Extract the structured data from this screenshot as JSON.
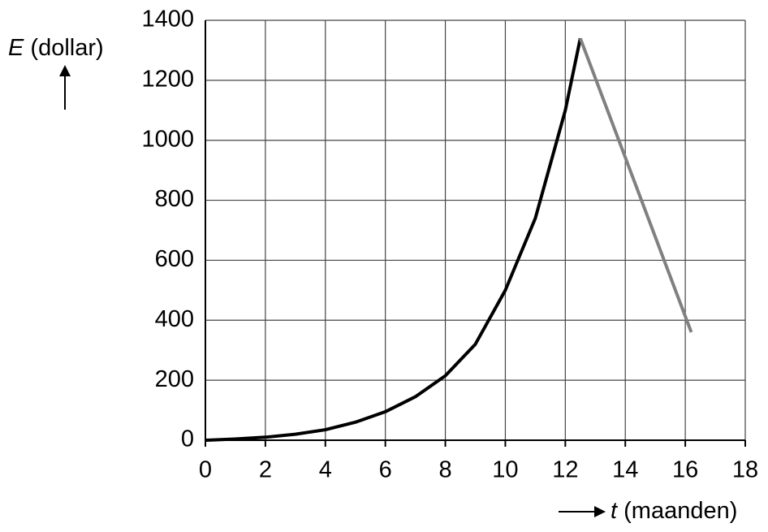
{
  "chart_data": {
    "type": "line",
    "y_label_symbol": "E",
    "y_label_unit": "(dollar)",
    "x_label_symbol": "t",
    "x_label_unit": "(maanden)",
    "xlim": [
      0,
      18
    ],
    "xticks": [
      0,
      2,
      4,
      6,
      8,
      10,
      12,
      14,
      16,
      18
    ],
    "ylim": [
      0,
      1400
    ],
    "yticks": [
      0,
      200,
      400,
      600,
      800,
      1000,
      1200,
      1400
    ],
    "grid": true,
    "series": [
      {
        "color": "#000000",
        "x": [
          0,
          1,
          2,
          3,
          4,
          5,
          6,
          7,
          8,
          9,
          10,
          11,
          12,
          12.5
        ],
        "values": [
          0,
          4,
          10,
          20,
          35,
          60,
          95,
          145,
          215,
          320,
          500,
          740,
          1100,
          1340
        ]
      },
      {
        "color": "#808080",
        "x": [
          12.5,
          16.2
        ],
        "values": [
          1340,
          360
        ]
      }
    ]
  }
}
